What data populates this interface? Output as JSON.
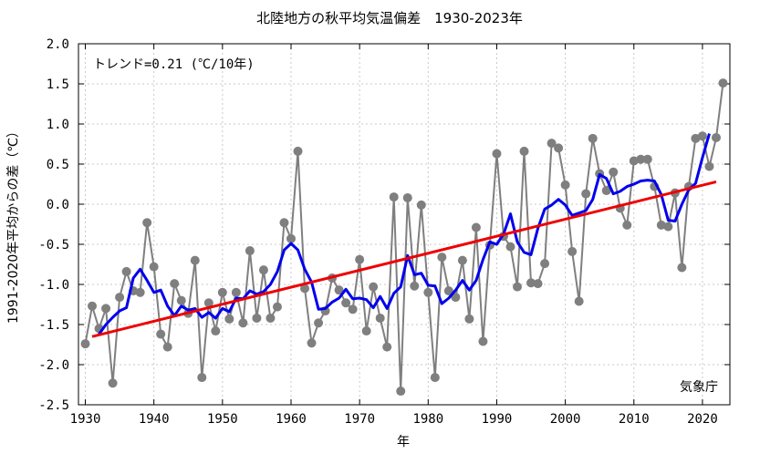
{
  "chart_data": {
    "type": "line",
    "title": "北陸地方の秋平均気温偏差　1930-2023年",
    "xlabel": "年",
    "ylabel": "1991-2020年平均からの差（℃）",
    "trend_label": "トレンド=0.21 (℃/10年)",
    "source_label": "気象庁",
    "xlim": [
      1929,
      2024
    ],
    "ylim": [
      -2.5,
      2.0
    ],
    "xticks": [
      1930,
      1940,
      1950,
      1960,
      1970,
      1980,
      1990,
      2000,
      2010,
      2020
    ],
    "yticks": [
      -2.5,
      -2.0,
      -1.5,
      -1.0,
      -0.5,
      0.0,
      0.5,
      1.0,
      1.5,
      2.0
    ],
    "ytick_labels": [
      "-2.5",
      "-2.0",
      "-1.5",
      "-1.0",
      "-0.5",
      "0.0",
      "0.5",
      "1.0",
      "1.5",
      "2.0"
    ],
    "grid": true,
    "colors": {
      "annual": "#7f7f7f",
      "moving_average": "#0000ee",
      "trend": "#ee0000"
    },
    "series": [
      {
        "kind": "annual",
        "x": [
          1930,
          1931,
          1932,
          1933,
          1934,
          1935,
          1936,
          1937,
          1938,
          1939,
          1940,
          1941,
          1942,
          1943,
          1944,
          1945,
          1946,
          1947,
          1948,
          1949,
          1950,
          1951,
          1952,
          1953,
          1954,
          1955,
          1956,
          1957,
          1958,
          1959,
          1960,
          1961,
          1962,
          1963,
          1964,
          1965,
          1966,
          1967,
          1968,
          1969,
          1970,
          1971,
          1972,
          1973,
          1974,
          1975,
          1976,
          1977,
          1978,
          1979,
          1980,
          1981,
          1982,
          1983,
          1984,
          1985,
          1986,
          1987,
          1988,
          1989,
          1990,
          1991,
          1992,
          1993,
          1994,
          1995,
          1996,
          1997,
          1998,
          1999,
          2000,
          2001,
          2002,
          2003,
          2004,
          2005,
          2006,
          2007,
          2008,
          2009,
          2010,
          2011,
          2012,
          2013,
          2014,
          2015,
          2016,
          2017,
          2018,
          2019,
          2020,
          2021,
          2022,
          2023
        ],
        "values": [
          -1.74,
          -1.27,
          -1.55,
          -1.3,
          -2.23,
          -1.16,
          -0.84,
          -1.08,
          -1.1,
          -0.23,
          -0.78,
          -1.62,
          -1.78,
          -0.99,
          -1.2,
          -1.36,
          -0.7,
          -2.16,
          -1.23,
          -1.58,
          -1.1,
          -1.43,
          -1.1,
          -1.48,
          -0.58,
          -1.42,
          -0.82,
          -1.42,
          -1.28,
          -0.23,
          -0.43,
          0.66,
          -1.05,
          -1.73,
          -1.48,
          -1.33,
          -0.92,
          -1.07,
          -1.23,
          -1.31,
          -0.69,
          -1.58,
          -1.03,
          -1.42,
          -1.78,
          0.09,
          -2.33,
          0.08,
          -1.02,
          -0.01,
          -1.1,
          -2.16,
          -0.66,
          -1.08,
          -1.16,
          -0.7,
          -1.43,
          -0.29,
          -1.71,
          -0.51,
          0.63,
          -0.4,
          -0.53,
          -1.03,
          0.66,
          -0.98,
          -0.99,
          -0.74,
          0.76,
          0.7,
          0.24,
          -0.59,
          -1.21,
          0.13,
          0.82,
          0.38,
          0.17,
          0.4,
          -0.05,
          -0.26,
          0.54,
          0.56,
          0.56,
          0.22,
          -0.26,
          -0.28,
          0.14,
          -0.79,
          0.22,
          0.82,
          0.85,
          0.47,
          0.83,
          1.51
        ]
      },
      {
        "kind": "moving_average",
        "x": [
          1932,
          1933,
          1934,
          1935,
          1936,
          1937,
          1938,
          1939,
          1940,
          1941,
          1942,
          1943,
          1944,
          1945,
          1946,
          1947,
          1948,
          1949,
          1950,
          1951,
          1952,
          1953,
          1954,
          1955,
          1956,
          1957,
          1958,
          1959,
          1960,
          1961,
          1962,
          1963,
          1964,
          1965,
          1966,
          1967,
          1968,
          1969,
          1970,
          1971,
          1972,
          1973,
          1974,
          1975,
          1976,
          1977,
          1978,
          1979,
          1980,
          1981,
          1982,
          1983,
          1984,
          1985,
          1986,
          1987,
          1988,
          1989,
          1990,
          1991,
          1992,
          1993,
          1994,
          1995,
          1996,
          1997,
          1998,
          1999,
          2000,
          2001,
          2002,
          2003,
          2004,
          2005,
          2006,
          2007,
          2008,
          2009,
          2010,
          2011,
          2012,
          2013,
          2014,
          2015,
          2016,
          2017,
          2018,
          2019,
          2020,
          2021
        ],
        "values": [
          -1.62,
          -1.5,
          -1.41,
          -1.33,
          -1.29,
          -0.92,
          -0.81,
          -0.95,
          -1.1,
          -1.07,
          -1.27,
          -1.39,
          -1.27,
          -1.32,
          -1.3,
          -1.41,
          -1.35,
          -1.42,
          -1.3,
          -1.34,
          -1.17,
          -1.18,
          -1.08,
          -1.12,
          -1.09,
          -1.0,
          -0.84,
          -0.57,
          -0.49,
          -0.57,
          -0.81,
          -0.97,
          -1.31,
          -1.3,
          -1.22,
          -1.17,
          -1.06,
          -1.18,
          -1.17,
          -1.19,
          -1.29,
          -1.15,
          -1.3,
          -1.11,
          -1.03,
          -0.64,
          -0.88,
          -0.86,
          -1.01,
          -1.02,
          -1.24,
          -1.17,
          -1.07,
          -0.95,
          -1.07,
          -0.95,
          -0.69,
          -0.47,
          -0.5,
          -0.37,
          -0.12,
          -0.47,
          -0.6,
          -0.63,
          -0.3,
          -0.06,
          -0.01,
          0.06,
          -0.01,
          -0.14,
          -0.11,
          -0.08,
          0.06,
          0.37,
          0.32,
          0.13,
          0.16,
          0.22,
          0.25,
          0.29,
          0.3,
          0.29,
          0.12,
          -0.2,
          -0.21,
          0.0,
          0.18,
          0.26,
          0.58,
          0.88
        ]
      },
      {
        "kind": "trend",
        "x": [
          1931,
          2022
        ],
        "values": [
          -1.65,
          0.28
        ]
      }
    ]
  }
}
